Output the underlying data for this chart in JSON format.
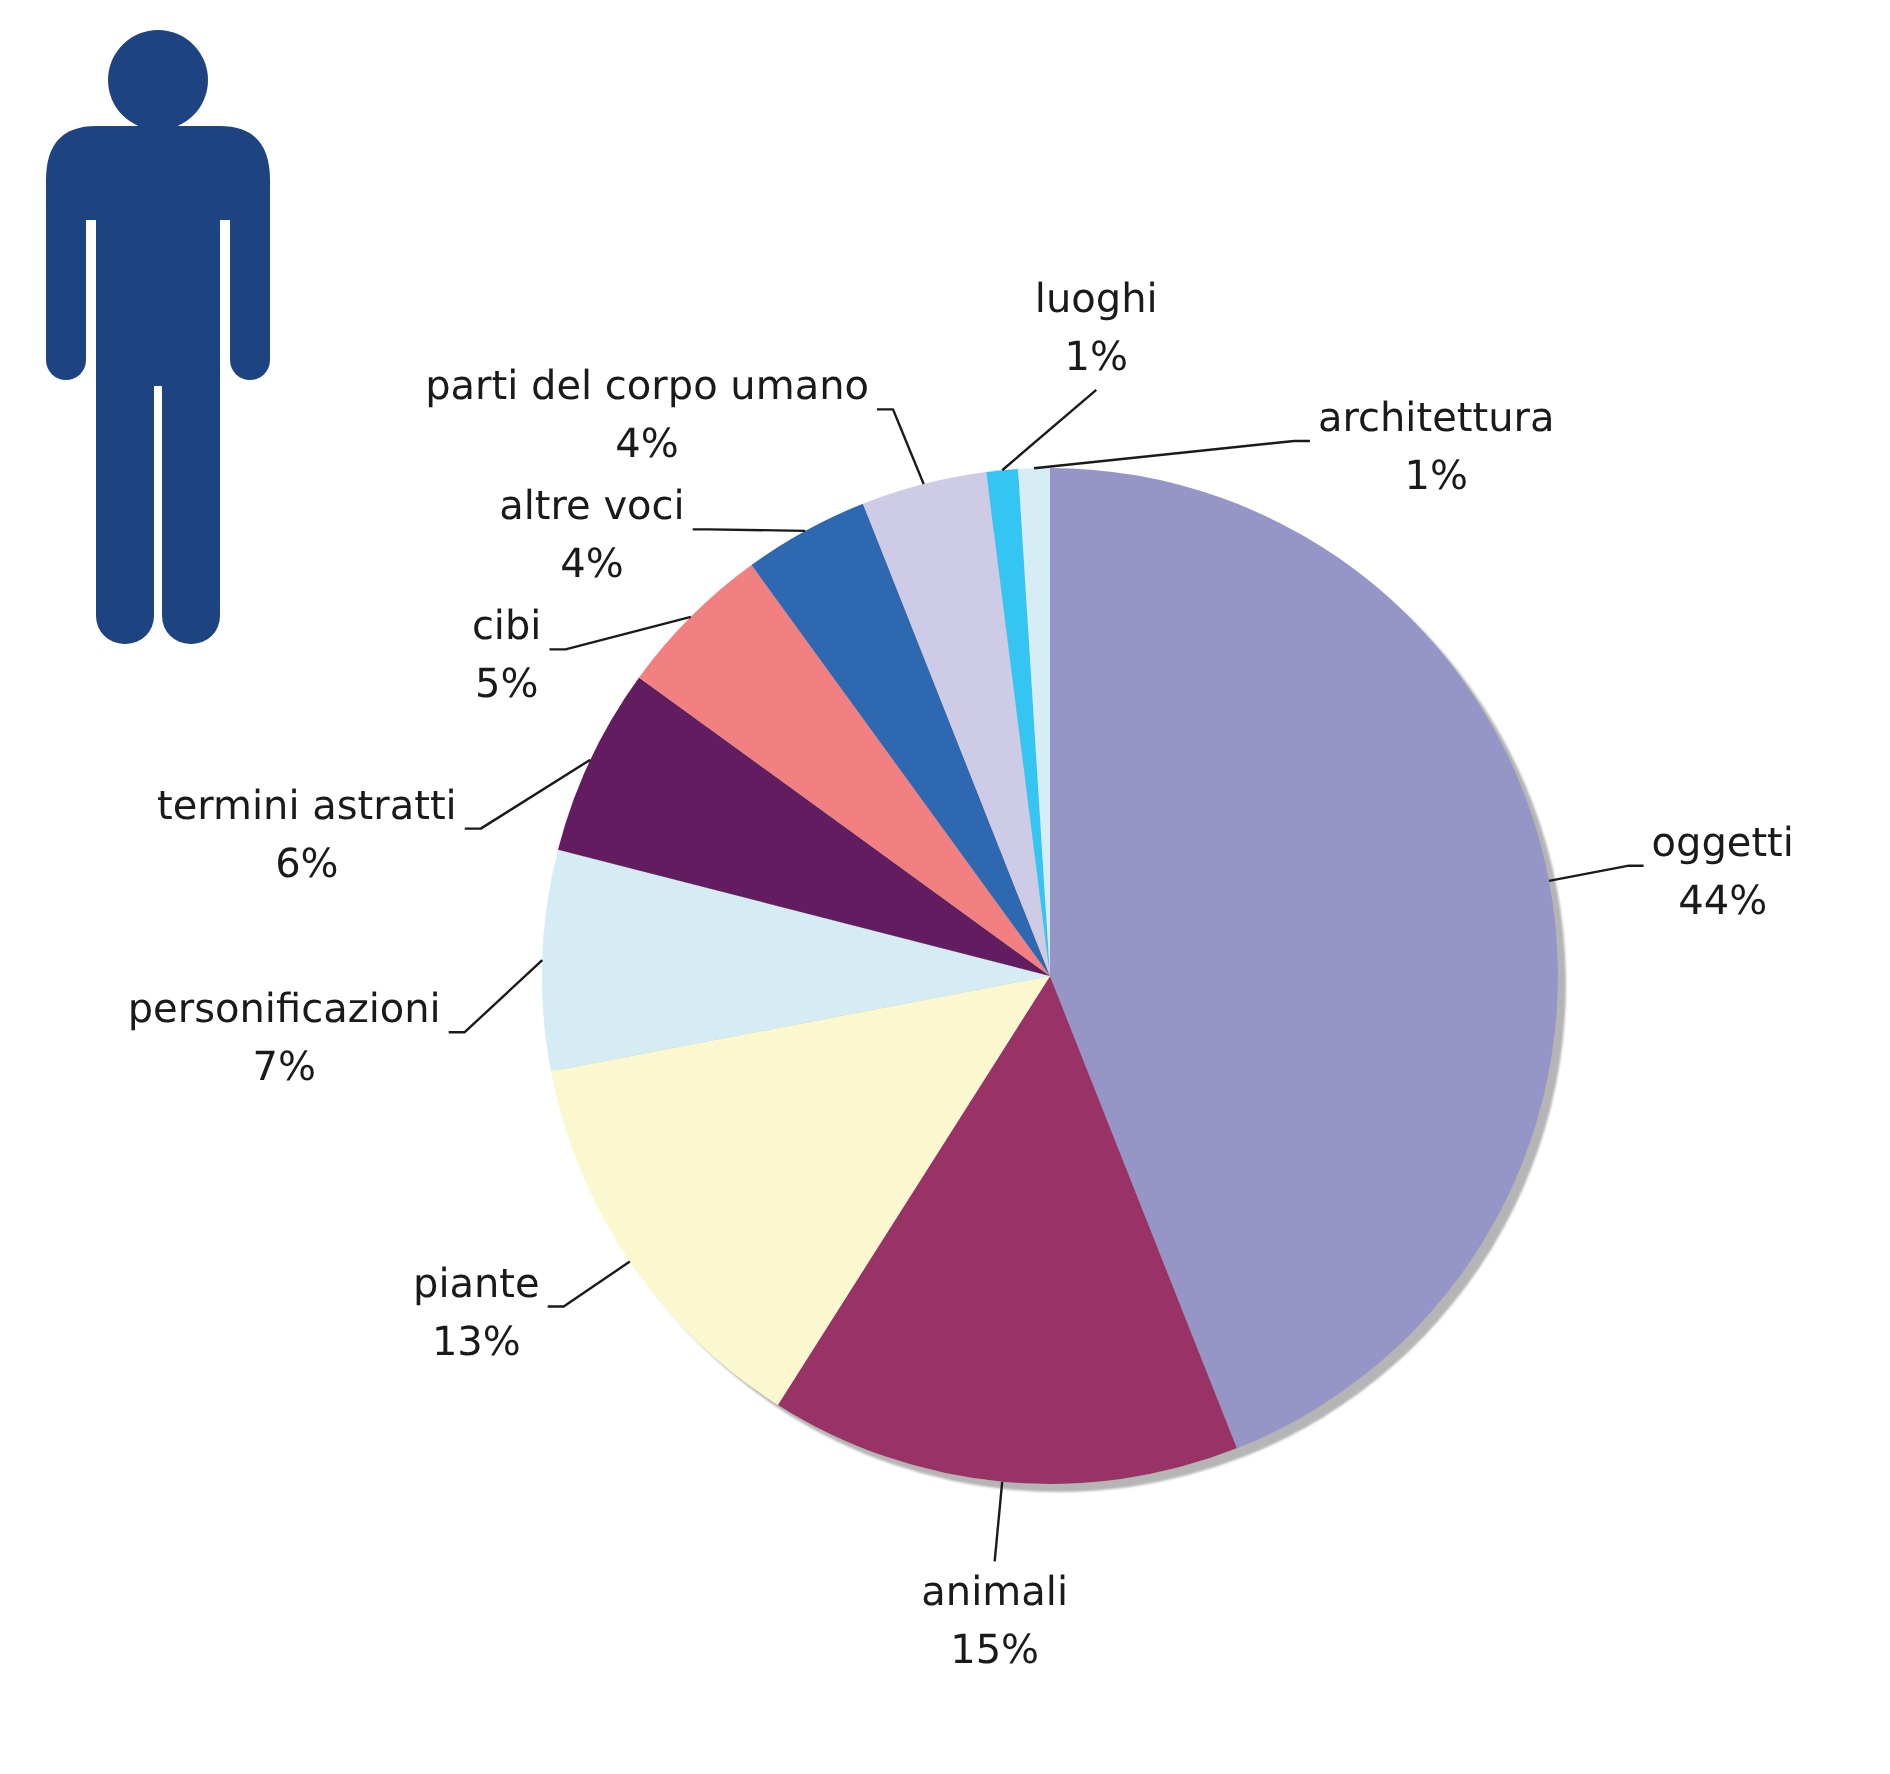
{
  "chart_data": {
    "type": "pie",
    "categories": [
      "oggetti",
      "animali",
      "piante",
      "personificazioni",
      "termini astratti",
      "cibi",
      "altre voci",
      "parti del corpo umano",
      "luoghi",
      "architettura"
    ],
    "values": [
      44,
      15,
      13,
      7,
      6,
      5,
      4,
      4,
      1,
      1
    ],
    "colors": [
      "#9695c8",
      "#993366",
      "#fbf8cf",
      "#d5ecf4",
      "#631f61",
      "#f28080",
      "#2e67b1",
      "#cdcbe6",
      "#35c5f3",
      "#d6edf5"
    ],
    "value_labels": [
      "44%",
      "15%",
      "13%",
      "7%",
      "6%",
      "5%",
      "4%",
      "4%",
      "1%",
      "1%"
    ]
  }
}
